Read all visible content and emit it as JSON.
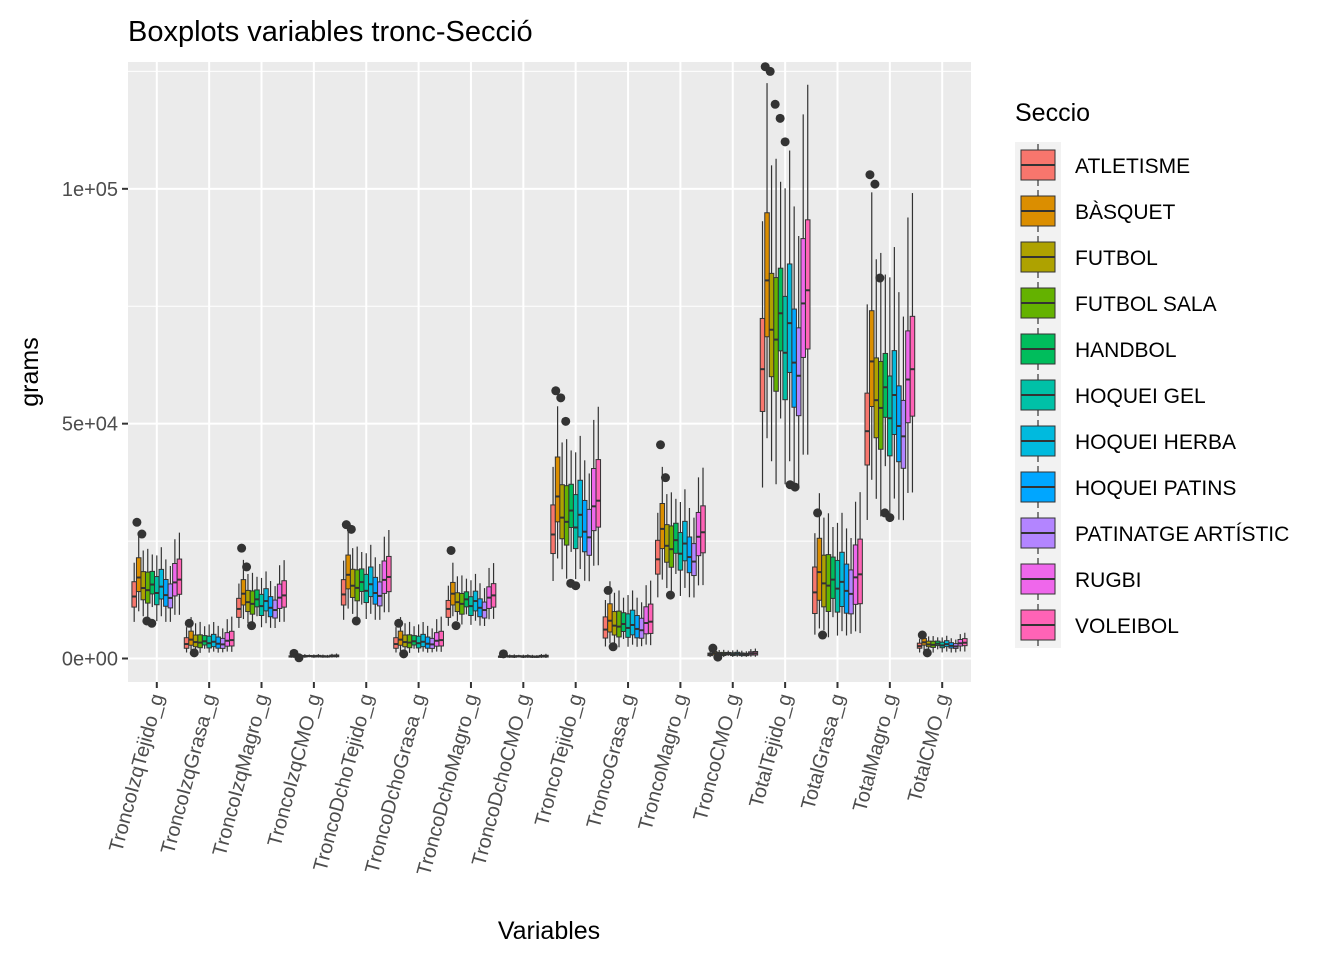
{
  "chart_data": {
    "type": "boxplot",
    "title": "Boxplots variables tronc-Secció",
    "xlabel": "Variables",
    "ylabel": "grams",
    "ylim": [
      -5000,
      127000
    ],
    "yticks": [
      0,
      50000,
      100000
    ],
    "ytick_labels": [
      "0e+00",
      "5e+04",
      "1e+05"
    ],
    "grid": true,
    "legend_title": "Seccio",
    "legend_position": "right",
    "categories": [
      "TroncoIzqTejido_g",
      "TroncoIzqGrasa_g",
      "TroncoIzqMagro_g",
      "TroncoIzqCMO_g",
      "TroncoDchoTejido_g",
      "TroncoDchoGrasa_g",
      "TroncoDchoMagro_g",
      "TroncoDchoCMO_g",
      "TroncoTejido_g",
      "TroncoGrasa_g",
      "TroncoMagro_g",
      "TroncoCMO_g",
      "TotalTejido_g",
      "TotalGrasa_g",
      "TotalMagro_g",
      "TotalCMO_g"
    ],
    "groups": [
      {
        "name": "ATLETISME",
        "color": "#F8766D"
      },
      {
        "name": "BÀSQUET",
        "color": "#DB8E00"
      },
      {
        "name": "FUTBOL",
        "color": "#AEA200"
      },
      {
        "name": "FUTBOL SALA",
        "color": "#64B200"
      },
      {
        "name": "HANDBOL",
        "color": "#00BD5C"
      },
      {
        "name": "HOQUEI GEL",
        "color": "#00C1A7"
      },
      {
        "name": "HOQUEI HERBA",
        "color": "#00BADE"
      },
      {
        "name": "HOQUEI PATINS",
        "color": "#00A6FF"
      },
      {
        "name": "PATINATGE ARTÍSTIC",
        "color": "#B385FF"
      },
      {
        "name": "RUGBI",
        "color": "#EF67EB"
      },
      {
        "name": "VOLEIBOL",
        "color": "#FF63B6"
      }
    ],
    "category_summary": [
      {
        "category": "TroncoIzqTejido_g",
        "median": 15000,
        "q1": 12500,
        "q3": 18500,
        "min": 9000,
        "max": 23000,
        "outliers": [
          29000,
          26500,
          8000,
          7500
        ]
      },
      {
        "category": "TroncoIzqGrasa_g",
        "median": 3500,
        "q1": 2500,
        "q3": 5000,
        "min": 1500,
        "max": 7500,
        "outliers": [
          7500,
          1200
        ]
      },
      {
        "category": "TroncoIzqMagro_g",
        "median": 12000,
        "q1": 10000,
        "q3": 14500,
        "min": 7500,
        "max": 18000,
        "outliers": [
          23500,
          19500,
          7000
        ]
      },
      {
        "category": "TroncoIzqCMO_g",
        "median": 500,
        "q1": 350,
        "q3": 650,
        "min": 200,
        "max": 900,
        "outliers": [
          1100,
          150
        ]
      },
      {
        "category": "TroncoDchoTejido_g",
        "median": 15500,
        "q1": 13000,
        "q3": 19000,
        "min": 9500,
        "max": 23500,
        "outliers": [
          28500,
          27500,
          8000
        ]
      },
      {
        "category": "TroncoDchoGrasa_g",
        "median": 3500,
        "q1": 2500,
        "q3": 5000,
        "min": 1500,
        "max": 7500,
        "outliers": [
          7500,
          1000
        ]
      },
      {
        "category": "TroncoDchoMagro_g",
        "median": 12000,
        "q1": 10000,
        "q3": 14000,
        "min": 8000,
        "max": 17500,
        "outliers": [
          23000,
          7000
        ]
      },
      {
        "category": "TroncoDchoCMO_g",
        "median": 450,
        "q1": 300,
        "q3": 600,
        "min": 150,
        "max": 850,
        "outliers": [
          1000
        ]
      },
      {
        "category": "TroncoTejido_g",
        "median": 30000,
        "q1": 25500,
        "q3": 37000,
        "min": 19000,
        "max": 46000,
        "outliers": [
          57000,
          55500,
          50500,
          16000,
          15500
        ]
      },
      {
        "category": "TroncoGrasa_g",
        "median": 7000,
        "q1": 5000,
        "q3": 10000,
        "min": 3000,
        "max": 14000,
        "outliers": [
          14500,
          2500
        ]
      },
      {
        "category": "TroncoMagro_g",
        "median": 24000,
        "q1": 20500,
        "q3": 28500,
        "min": 15000,
        "max": 35000,
        "outliers": [
          45500,
          38500,
          13500
        ]
      },
      {
        "category": "TroncoCMO_g",
        "median": 1000,
        "q1": 700,
        "q3": 1300,
        "min": 400,
        "max": 1800,
        "outliers": [
          2200,
          300
        ]
      },
      {
        "category": "TotalTejido_g",
        "median": 70000,
        "q1": 60000,
        "q3": 82000,
        "min": 42000,
        "max": 105000,
        "outliers": [
          126000,
          125000,
          118000,
          115000,
          110000,
          37000,
          36500
        ]
      },
      {
        "category": "TotalGrasa_g",
        "median": 16000,
        "q1": 11000,
        "q3": 22000,
        "min": 6000,
        "max": 30000,
        "outliers": [
          31000,
          5000
        ]
      },
      {
        "category": "TotalMagro_g",
        "median": 55000,
        "q1": 47000,
        "q3": 64000,
        "min": 34000,
        "max": 85000,
        "outliers": [
          103000,
          101000,
          81000,
          31000,
          30000
        ]
      },
      {
        "category": "TotalCMO_g",
        "median": 3000,
        "q1": 2500,
        "q3": 3700,
        "min": 1500,
        "max": 4700,
        "outliers": [
          5000,
          1200
        ]
      }
    ]
  }
}
